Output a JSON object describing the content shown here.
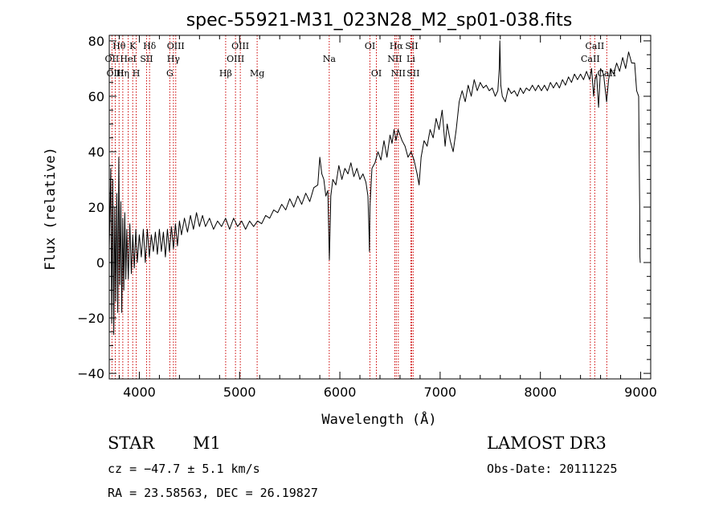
{
  "chart_data": {
    "type": "line",
    "title": "spec-55921-M31_023N28_M2_sp01-038.fits",
    "xlabel": "Wavelength (Å)",
    "ylabel": "Flux (relative)",
    "xlim": [
      3700,
      9100
    ],
    "ylim": [
      -42,
      82
    ],
    "xticks": [
      4000,
      5000,
      6000,
      7000,
      8000,
      9000
    ],
    "xtick_labels": [
      "4000",
      "5000",
      "6000",
      "7000",
      "8000",
      "9000"
    ],
    "yticks": [
      -40,
      -20,
      0,
      20,
      40,
      60,
      80
    ],
    "ytick_labels": [
      "−40",
      "−20",
      "0",
      "20",
      "40",
      "60",
      "80"
    ],
    "series": [
      {
        "name": "flux",
        "points": [
          [
            3700,
            4
          ],
          [
            3715,
            34
          ],
          [
            3725,
            -22
          ],
          [
            3735,
            30
          ],
          [
            3745,
            -26
          ],
          [
            3755,
            20
          ],
          [
            3765,
            -14
          ],
          [
            3775,
            25
          ],
          [
            3785,
            -18
          ],
          [
            3795,
            38
          ],
          [
            3805,
            -8
          ],
          [
            3815,
            22
          ],
          [
            3825,
            -18
          ],
          [
            3835,
            16
          ],
          [
            3845,
            -10
          ],
          [
            3855,
            18
          ],
          [
            3865,
            -6
          ],
          [
            3875,
            12
          ],
          [
            3890,
            -6
          ],
          [
            3905,
            14
          ],
          [
            3920,
            -4
          ],
          [
            3935,
            10
          ],
          [
            3950,
            -2
          ],
          [
            3965,
            12
          ],
          [
            3980,
            0
          ],
          [
            4000,
            10
          ],
          [
            4020,
            2
          ],
          [
            4040,
            12
          ],
          [
            4060,
            0
          ],
          [
            4080,
            12
          ],
          [
            4100,
            2
          ],
          [
            4120,
            10
          ],
          [
            4140,
            4
          ],
          [
            4160,
            11
          ],
          [
            4180,
            3
          ],
          [
            4200,
            12
          ],
          [
            4220,
            4
          ],
          [
            4240,
            11
          ],
          [
            4260,
            2
          ],
          [
            4280,
            12
          ],
          [
            4300,
            4
          ],
          [
            4320,
            13
          ],
          [
            4340,
            5
          ],
          [
            4360,
            14
          ],
          [
            4380,
            6
          ],
          [
            4400,
            15
          ],
          [
            4420,
            10
          ],
          [
            4450,
            16
          ],
          [
            4480,
            11
          ],
          [
            4510,
            17
          ],
          [
            4540,
            12
          ],
          [
            4570,
            18
          ],
          [
            4600,
            13
          ],
          [
            4630,
            17
          ],
          [
            4660,
            13
          ],
          [
            4700,
            16
          ],
          [
            4740,
            12
          ],
          [
            4780,
            15
          ],
          [
            4820,
            13
          ],
          [
            4860,
            16
          ],
          [
            4900,
            12
          ],
          [
            4940,
            16
          ],
          [
            4980,
            13
          ],
          [
            5020,
            15
          ],
          [
            5060,
            12
          ],
          [
            5100,
            15
          ],
          [
            5140,
            13
          ],
          [
            5180,
            15
          ],
          [
            5220,
            14
          ],
          [
            5260,
            17
          ],
          [
            5300,
            16
          ],
          [
            5340,
            19
          ],
          [
            5380,
            18
          ],
          [
            5420,
            21
          ],
          [
            5460,
            19
          ],
          [
            5500,
            23
          ],
          [
            5540,
            20
          ],
          [
            5580,
            24
          ],
          [
            5620,
            21
          ],
          [
            5660,
            25
          ],
          [
            5700,
            22
          ],
          [
            5740,
            27
          ],
          [
            5780,
            28
          ],
          [
            5800,
            38
          ],
          [
            5820,
            32
          ],
          [
            5840,
            30
          ],
          [
            5860,
            24
          ],
          [
            5880,
            26
          ],
          [
            5890,
            10
          ],
          [
            5895,
            1
          ],
          [
            5900,
            8
          ],
          [
            5910,
            24
          ],
          [
            5930,
            30
          ],
          [
            5960,
            28
          ],
          [
            5990,
            35
          ],
          [
            6020,
            30
          ],
          [
            6050,
            34
          ],
          [
            6080,
            32
          ],
          [
            6110,
            36
          ],
          [
            6140,
            31
          ],
          [
            6170,
            34
          ],
          [
            6200,
            30
          ],
          [
            6230,
            32
          ],
          [
            6260,
            29
          ],
          [
            6280,
            24
          ],
          [
            6290,
            12
          ],
          [
            6295,
            4
          ],
          [
            6300,
            20
          ],
          [
            6320,
            34
          ],
          [
            6350,
            36
          ],
          [
            6380,
            40
          ],
          [
            6410,
            37
          ],
          [
            6440,
            44
          ],
          [
            6470,
            38
          ],
          [
            6500,
            46
          ],
          [
            6520,
            43
          ],
          [
            6540,
            48
          ],
          [
            6560,
            44
          ],
          [
            6580,
            48
          ],
          [
            6600,
            46
          ],
          [
            6620,
            44
          ],
          [
            6650,
            42
          ],
          [
            6680,
            38
          ],
          [
            6710,
            40
          ],
          [
            6740,
            37
          ],
          [
            6770,
            32
          ],
          [
            6790,
            28
          ],
          [
            6810,
            38
          ],
          [
            6840,
            44
          ],
          [
            6870,
            42
          ],
          [
            6900,
            48
          ],
          [
            6930,
            45
          ],
          [
            6960,
            52
          ],
          [
            6990,
            48
          ],
          [
            7020,
            55
          ],
          [
            7050,
            42
          ],
          [
            7070,
            50
          ],
          [
            7100,
            44
          ],
          [
            7130,
            40
          ],
          [
            7160,
            48
          ],
          [
            7190,
            58
          ],
          [
            7220,
            62
          ],
          [
            7250,
            58
          ],
          [
            7280,
            64
          ],
          [
            7310,
            60
          ],
          [
            7340,
            66
          ],
          [
            7370,
            62
          ],
          [
            7400,
            65
          ],
          [
            7430,
            63
          ],
          [
            7460,
            64
          ],
          [
            7490,
            62
          ],
          [
            7520,
            63
          ],
          [
            7550,
            60
          ],
          [
            7575,
            62
          ],
          [
            7590,
            70
          ],
          [
            7595,
            80
          ],
          [
            7605,
            64
          ],
          [
            7620,
            60
          ],
          [
            7650,
            58
          ],
          [
            7680,
            63
          ],
          [
            7710,
            61
          ],
          [
            7740,
            62
          ],
          [
            7770,
            60
          ],
          [
            7800,
            63
          ],
          [
            7830,
            61
          ],
          [
            7860,
            63
          ],
          [
            7890,
            62
          ],
          [
            7920,
            64
          ],
          [
            7950,
            62
          ],
          [
            7980,
            64
          ],
          [
            8010,
            62
          ],
          [
            8040,
            64
          ],
          [
            8070,
            62
          ],
          [
            8100,
            65
          ],
          [
            8130,
            63
          ],
          [
            8160,
            65
          ],
          [
            8190,
            63
          ],
          [
            8220,
            66
          ],
          [
            8250,
            64
          ],
          [
            8280,
            67
          ],
          [
            8310,
            65
          ],
          [
            8340,
            68
          ],
          [
            8370,
            66
          ],
          [
            8400,
            68
          ],
          [
            8430,
            66
          ],
          [
            8460,
            69
          ],
          [
            8490,
            66
          ],
          [
            8510,
            70
          ],
          [
            8530,
            60
          ],
          [
            8545,
            66
          ],
          [
            8560,
            68
          ],
          [
            8580,
            56
          ],
          [
            8600,
            70
          ],
          [
            8630,
            68
          ],
          [
            8660,
            58
          ],
          [
            8680,
            66
          ],
          [
            8700,
            70
          ],
          [
            8730,
            68
          ],
          [
            8760,
            72
          ],
          [
            8790,
            69
          ],
          [
            8820,
            74
          ],
          [
            8850,
            70
          ],
          [
            8880,
            76
          ],
          [
            8910,
            72
          ],
          [
            8940,
            72
          ],
          [
            8960,
            62
          ],
          [
            8980,
            60
          ],
          [
            8985,
            40
          ],
          [
            8990,
            20
          ],
          [
            8993,
            2
          ],
          [
            8996,
            0
          ],
          [
            9000,
            0
          ]
        ]
      }
    ],
    "lines": [
      {
        "label": "Hθ",
        "wl": 3798,
        "row": 1
      },
      {
        "label": "OII",
        "wl": 3727,
        "row": 2
      },
      {
        "label": "OIII",
        "wl": 3760,
        "row": 3
      },
      {
        "label": "Hη",
        "wl": 3835,
        "row": 3
      },
      {
        "label": "HeI",
        "wl": 3889,
        "row": 2
      },
      {
        "label": "K",
        "wl": 3934,
        "row": 1
      },
      {
        "label": "H",
        "wl": 3969,
        "row": 3
      },
      {
        "label": "SII",
        "wl": 4072,
        "row": 2
      },
      {
        "label": "Hδ",
        "wl": 4102,
        "row": 1
      },
      {
        "label": "G",
        "wl": 4304,
        "row": 3
      },
      {
        "label": "Hγ",
        "wl": 4340,
        "row": 2
      },
      {
        "label": "OIII",
        "wl": 4363,
        "row": 1
      },
      {
        "label": "Hβ",
        "wl": 4861,
        "row": 3
      },
      {
        "label": "OIII",
        "wl": 4959,
        "row": 2
      },
      {
        "label": "OIII",
        "wl": 5007,
        "row": 1
      },
      {
        "label": "Mg",
        "wl": 5175,
        "row": 3
      },
      {
        "label": "Na",
        "wl": 5894,
        "row": 2
      },
      {
        "label": "OI",
        "wl": 6300,
        "row": 1
      },
      {
        "label": "OI",
        "wl": 6364,
        "row": 3
      },
      {
        "label": "NII",
        "wl": 6548,
        "row": 2
      },
      {
        "label": "Hα",
        "wl": 6563,
        "row": 1
      },
      {
        "label": "NII",
        "wl": 6583,
        "row": 3
      },
      {
        "label": "SII",
        "wl": 6716,
        "row": 1
      },
      {
        "label": "Li",
        "wl": 6708,
        "row": 2
      },
      {
        "label": "SII",
        "wl": 6731,
        "row": 3
      },
      {
        "label": "CaII",
        "wl": 8498,
        "row": 2
      },
      {
        "label": "CaII",
        "wl": 8542,
        "row": 1
      },
      {
        "label": "CaII",
        "wl": 8662,
        "row": 3
      }
    ],
    "colors": {
      "spectrum": "#000000",
      "line_marker": "#cc0000",
      "axes": "#000000"
    }
  },
  "footer": {
    "object_type": "STAR",
    "subclass": "M1",
    "survey": "LAMOST DR3",
    "velocity": "cz = −47.7 ± 5.1 km/s",
    "obs_date": "Obs-Date: 20111225",
    "coords": "RA =  23.58563, DEC =  26.19827"
  }
}
